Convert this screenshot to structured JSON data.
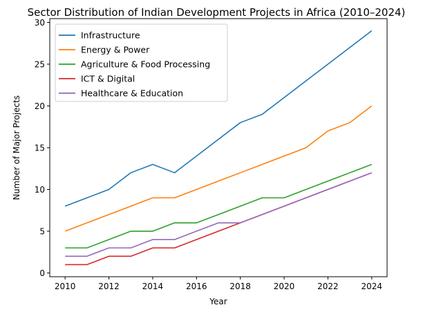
{
  "chart_data": {
    "type": "line",
    "title": "Sector Distribution of Indian Development Projects in Africa (2010–2024)",
    "xlabel": "Year",
    "ylabel": "Number of Major Projects",
    "x": [
      2010,
      2011,
      2012,
      2013,
      2014,
      2015,
      2016,
      2017,
      2018,
      2019,
      2020,
      2021,
      2022,
      2023,
      2024
    ],
    "xlim": [
      2009.3,
      2024.7
    ],
    "ylim": [
      -0.45,
      30.45
    ],
    "xticks": [
      2010,
      2012,
      2014,
      2016,
      2018,
      2020,
      2022,
      2024
    ],
    "yticks": [
      0,
      5,
      10,
      15,
      20,
      25,
      30
    ],
    "grid": false,
    "legend_position": "top-left",
    "series": [
      {
        "name": "Infrastructure",
        "color": "#1f77b4",
        "values": [
          8,
          9,
          10,
          12,
          13,
          12,
          14,
          16,
          18,
          19,
          21,
          23,
          25,
          27,
          29
        ]
      },
      {
        "name": "Energy & Power",
        "color": "#ff7f0e",
        "values": [
          5,
          6,
          7,
          8,
          9,
          9,
          10,
          11,
          12,
          13,
          14,
          15,
          17,
          18,
          20
        ]
      },
      {
        "name": "Agriculture & Food Processing",
        "color": "#2ca02c",
        "values": [
          3,
          3,
          4,
          5,
          5,
          6,
          6,
          7,
          8,
          9,
          9,
          10,
          11,
          12,
          13
        ]
      },
      {
        "name": "ICT & Digital",
        "color": "#d62728",
        "values": [
          1,
          1,
          2,
          2,
          3,
          3,
          4,
          5,
          6,
          7,
          8,
          9,
          10,
          11,
          12
        ]
      },
      {
        "name": "Healthcare & Education",
        "color": "#9467bd",
        "values": [
          2,
          2,
          3,
          3,
          4,
          4,
          5,
          6,
          6,
          7,
          8,
          9,
          10,
          11,
          12
        ]
      }
    ]
  }
}
